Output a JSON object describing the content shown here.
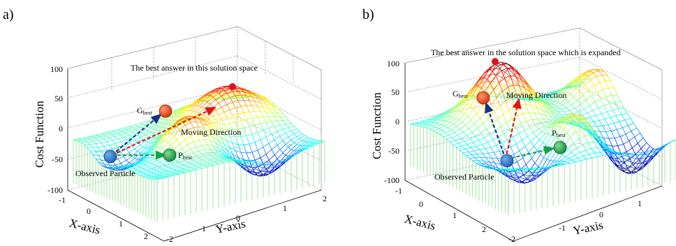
{
  "panels": [
    {
      "id": "a",
      "label": "a)",
      "z_label": "Cost Function",
      "x_label": "X-axis",
      "y_label": "Y-axis",
      "z_ticks": [
        "100",
        "50",
        "0",
        "-50",
        "-100"
      ],
      "x_ticks": [
        "-1",
        "0",
        "1",
        "2"
      ],
      "y_ticks": [
        "-2",
        "-1",
        "0",
        "1",
        "2"
      ],
      "annotations": {
        "best_answer": "The best answer in this solution space",
        "gbest_main": "G",
        "gbest_sub": "best",
        "pbest_main": "P",
        "pbest_sub": "best",
        "moving_direction": "Moving Direction",
        "observed_particle": "Observed Particle"
      },
      "marker_colors": {
        "observed": "#1f6fc4",
        "gbest": "#e8421b",
        "pbest": "#27a84a",
        "best": "#e0101a"
      }
    },
    {
      "id": "b",
      "label": "b)",
      "z_label": "Cost Function",
      "x_label": "X-axis",
      "y_label": "Y-axis",
      "z_ticks": [
        "100",
        "50",
        "0",
        "-50",
        "-100"
      ],
      "x_ticks": [
        "-1",
        "0",
        "1",
        "2"
      ],
      "y_ticks": [
        "-2",
        "-1",
        "0",
        "1"
      ],
      "annotations": {
        "best_answer": "The best answer in the solution space which is expanded",
        "gbest_main": "G",
        "gbest_sub": "best",
        "pbest_main": "P",
        "pbest_sub": "best",
        "moving_direction": "Moving Direction",
        "observed_particle": "Observed Particle"
      },
      "marker_colors": {
        "observed": "#1f6fc4",
        "gbest": "#e8421b",
        "pbest": "#27a84a",
        "best": "#e0101a"
      }
    }
  ],
  "arrow_colors": {
    "to_gbest": "#1a2f8a",
    "to_pbest": "#1e9e45",
    "moving": "#e01515"
  }
}
